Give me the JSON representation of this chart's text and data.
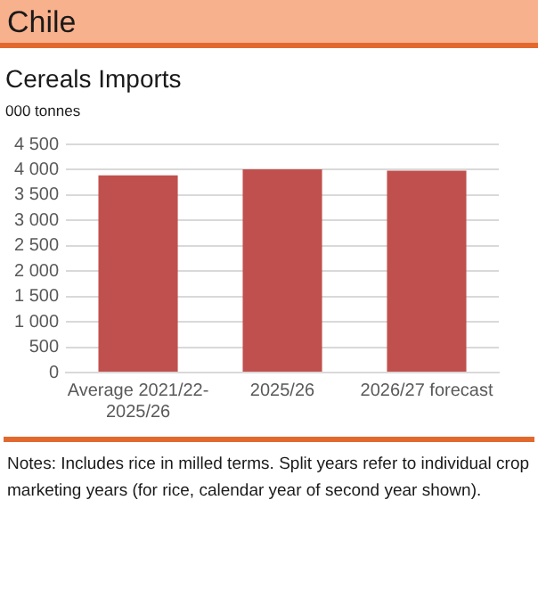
{
  "chart_data": {
    "type": "bar",
    "title": "Chile",
    "subtitle": "Cereals Imports",
    "ylabel": "000 tonnes",
    "categories": [
      "Average 2021/22-2025/26",
      "2025/26",
      "2026/27 forecast"
    ],
    "values": [
      3890,
      4010,
      3980
    ],
    "color": "#c0504d",
    "ylim": [
      0,
      4500
    ],
    "yticks": [
      {
        "value": 0,
        "label": "0"
      },
      {
        "value": 500,
        "label": "500"
      },
      {
        "value": 1000,
        "label": "1 000"
      },
      {
        "value": 1500,
        "label": "1 500"
      },
      {
        "value": 2000,
        "label": "2 000"
      },
      {
        "value": 2500,
        "label": "2 500"
      },
      {
        "value": 3000,
        "label": "3 000"
      },
      {
        "value": 3500,
        "label": "3 500"
      },
      {
        "value": 4000,
        "label": "4 000"
      },
      {
        "value": 4500,
        "label": "4 500"
      }
    ],
    "grid": "y",
    "annotations": [
      "Notes: Includes rice in milled terms. Split years refer to individual crop marketing years (for rice, calendar year of second year shown)."
    ]
  }
}
